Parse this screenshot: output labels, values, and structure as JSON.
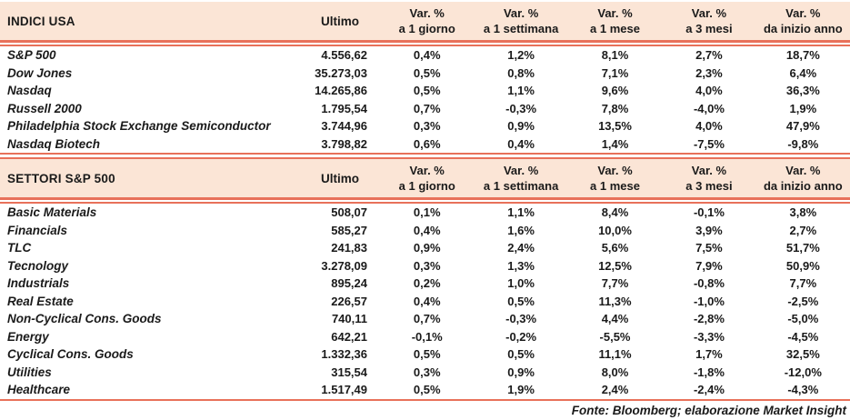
{
  "colors": {
    "header_bg": "#FBE5D6",
    "rule": "#E8715A",
    "text": "#1A1A1A"
  },
  "footer": "Fonte: Bloomberg; elaborazione Market Insight",
  "tables": [
    {
      "title": "INDICI USA",
      "ultimo_label": "Ultimo",
      "var_cols": [
        {
          "l1": "Var. %",
          "l2": "a 1 giorno"
        },
        {
          "l1": "Var. %",
          "l2": "a 1 settimana"
        },
        {
          "l1": "Var. %",
          "l2": "a 1 mese"
        },
        {
          "l1": "Var. %",
          "l2": "a 3 mesi"
        },
        {
          "l1": "Var. %",
          "l2": "da inizio anno"
        }
      ],
      "rows": [
        {
          "name": "S&P 500",
          "ultimo": "4.556,62",
          "v1": "0,4%",
          "v2": "1,2%",
          "v3": "8,1%",
          "v4": "2,7%",
          "v5": "18,7%"
        },
        {
          "name": "Dow Jones",
          "ultimo": "35.273,03",
          "v1": "0,5%",
          "v2": "0,8%",
          "v3": "7,1%",
          "v4": "2,3%",
          "v5": "6,4%"
        },
        {
          "name": "Nasdaq",
          "ultimo": "14.265,86",
          "v1": "0,5%",
          "v2": "1,1%",
          "v3": "9,6%",
          "v4": "4,0%",
          "v5": "36,3%"
        },
        {
          "name": "Russell 2000",
          "ultimo": "1.795,54",
          "v1": "0,7%",
          "v2": "-0,3%",
          "v3": "7,8%",
          "v4": "-4,0%",
          "v5": "1,9%"
        },
        {
          "name": "Philadelphia Stock Exchange Semiconductor",
          "ultimo": "3.744,96",
          "v1": "0,3%",
          "v2": "0,9%",
          "v3": "13,5%",
          "v4": "4,0%",
          "v5": "47,9%"
        },
        {
          "name": "Nasdaq Biotech",
          "ultimo": "3.798,82",
          "v1": "0,6%",
          "v2": "0,4%",
          "v3": "1,4%",
          "v4": "-7,5%",
          "v5": "-9,8%"
        }
      ]
    },
    {
      "title": "SETTORI S&P 500",
      "ultimo_label": "Ultimo",
      "var_cols": [
        {
          "l1": "Var. %",
          "l2": "a 1 giorno"
        },
        {
          "l1": "Var. %",
          "l2": "a 1 settimana"
        },
        {
          "l1": "Var. %",
          "l2": "a 1 mese"
        },
        {
          "l1": "Var. %",
          "l2": "a 3 mesi"
        },
        {
          "l1": "Var. %",
          "l2": "da inizio anno"
        }
      ],
      "rows": [
        {
          "name": "Basic Materials",
          "ultimo": "508,07",
          "v1": "0,1%",
          "v2": "1,1%",
          "v3": "8,4%",
          "v4": "-0,1%",
          "v5": "3,8%"
        },
        {
          "name": "Financials",
          "ultimo": "585,27",
          "v1": "0,4%",
          "v2": "1,6%",
          "v3": "10,0%",
          "v4": "3,9%",
          "v5": "2,7%"
        },
        {
          "name": "TLC",
          "ultimo": "241,83",
          "v1": "0,9%",
          "v2": "2,4%",
          "v3": "5,6%",
          "v4": "7,5%",
          "v5": "51,7%"
        },
        {
          "name": "Tecnology",
          "ultimo": "3.278,09",
          "v1": "0,3%",
          "v2": "1,3%",
          "v3": "12,5%",
          "v4": "7,9%",
          "v5": "50,9%"
        },
        {
          "name": "Industrials",
          "ultimo": "895,24",
          "v1": "0,2%",
          "v2": "1,0%",
          "v3": "7,7%",
          "v4": "-0,8%",
          "v5": "7,7%"
        },
        {
          "name": "Real Estate",
          "ultimo": "226,57",
          "v1": "0,4%",
          "v2": "0,5%",
          "v3": "11,3%",
          "v4": "-1,0%",
          "v5": "-2,5%"
        },
        {
          "name": "Non-Cyclical Cons. Goods",
          "ultimo": "740,11",
          "v1": "0,7%",
          "v2": "-0,3%",
          "v3": "4,4%",
          "v4": "-2,8%",
          "v5": "-5,0%"
        },
        {
          "name": "Energy",
          "ultimo": "642,21",
          "v1": "-0,1%",
          "v2": "-0,2%",
          "v3": "-5,5%",
          "v4": "-3,3%",
          "v5": "-4,5%"
        },
        {
          "name": "Cyclical Cons. Goods",
          "ultimo": "1.332,36",
          "v1": "0,5%",
          "v2": "0,5%",
          "v3": "11,1%",
          "v4": "1,7%",
          "v5": "32,5%"
        },
        {
          "name": "Utilities",
          "ultimo": "315,54",
          "v1": "0,3%",
          "v2": "0,9%",
          "v3": "8,0%",
          "v4": "-1,8%",
          "v5": "-12,0%"
        },
        {
          "name": "Healthcare",
          "ultimo": "1.517,49",
          "v1": "0,5%",
          "v2": "1,9%",
          "v3": "2,4%",
          "v4": "-2,4%",
          "v5": "-4,3%"
        }
      ]
    }
  ]
}
